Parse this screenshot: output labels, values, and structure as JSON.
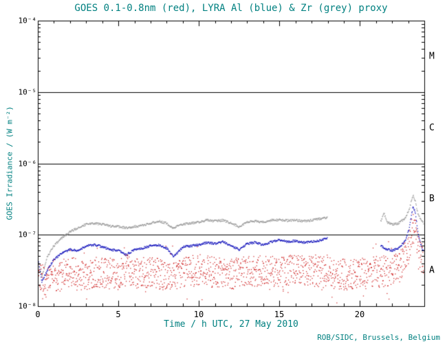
{
  "title": "GOES 0.1-0.8nm (red), LYRA Al (blue) & Zr (grey) proxy",
  "credit": "ROB/SIDC, Brussels, Belgium",
  "colors": {
    "title_text": "#008080",
    "axis": "#000000",
    "red": "#cc1111",
    "blue": "#1111bb",
    "grey": "#999999",
    "background": "#ffffff"
  },
  "axes": {
    "x": {
      "label": "Time / h UTC, 27 May 2010",
      "min": 0,
      "max": 24,
      "minor_step": 1,
      "ticks": [
        {
          "value": 0,
          "label": "0"
        },
        {
          "value": 5,
          "label": "5"
        },
        {
          "value": 10,
          "label": "10"
        },
        {
          "value": 15,
          "label": "15"
        },
        {
          "value": 20,
          "label": "20"
        }
      ]
    },
    "y": {
      "label": "GOES Irradiance / (W m⁻²)",
      "min_exp": -8,
      "max_exp": -4,
      "ticks": [
        {
          "exp": -4,
          "label": "10⁻⁴"
        },
        {
          "exp": -5,
          "label": "10⁻⁵"
        },
        {
          "exp": -6,
          "label": "10⁻⁶"
        },
        {
          "exp": -7,
          "label": "10⁻⁷"
        },
        {
          "exp": -8,
          "label": "10⁻⁸"
        }
      ]
    }
  },
  "flux_classes": [
    {
      "label": "M",
      "band_mid_exp": -4.5
    },
    {
      "label": "C",
      "band_mid_exp": -5.5
    },
    {
      "label": "B",
      "band_mid_exp": -6.5
    },
    {
      "label": "A",
      "band_mid_exp": -7.5
    }
  ],
  "threshold_lines": [
    1e-05,
    1e-06,
    1e-07
  ],
  "chart_data": {
    "type": "scatter",
    "title": "GOES 0.1-0.8nm (red), LYRA Al (blue) & Zr (grey) proxy",
    "xlabel": "Time / h UTC, 27 May 2010",
    "ylabel": "GOES Irradiance / (W m⁻²)",
    "x_range_hours": [
      0,
      24
    ],
    "y_range": [
      1e-08,
      0.0001
    ],
    "y_scale": "log",
    "grid": false,
    "legend": "in title",
    "series": [
      {
        "name": "LYRA Zr proxy",
        "color_key": "grey",
        "style": "dotted-line",
        "seed": 303,
        "sample_step": 0.025,
        "jitter_log": 0.015,
        "dot": 1.3,
        "segments": [
          [
            [
              0,
              4.5e-08
            ],
            [
              0.25,
              2.6e-08
            ],
            [
              0.6,
              5e-08
            ],
            [
              1,
              7e-08
            ],
            [
              1.5,
              9e-08
            ],
            [
              2,
              1.1e-07
            ],
            [
              2.5,
              1.25e-07
            ],
            [
              3,
              1.4e-07
            ],
            [
              3.5,
              1.45e-07
            ],
            [
              4,
              1.4e-07
            ],
            [
              4.5,
              1.32e-07
            ],
            [
              5,
              1.3e-07
            ],
            [
              5.5,
              1.25e-07
            ],
            [
              6,
              1.3e-07
            ],
            [
              6.5,
              1.35e-07
            ],
            [
              7,
              1.45e-07
            ],
            [
              7.5,
              1.55e-07
            ],
            [
              8,
              1.45e-07
            ],
            [
              8.4,
              1.25e-07
            ],
            [
              9,
              1.4e-07
            ],
            [
              9.5,
              1.45e-07
            ],
            [
              10,
              1.5e-07
            ],
            [
              10.5,
              1.6e-07
            ],
            [
              11,
              1.55e-07
            ],
            [
              11.5,
              1.6e-07
            ],
            [
              12,
              1.45e-07
            ],
            [
              12.5,
              1.3e-07
            ],
            [
              13,
              1.5e-07
            ],
            [
              13.5,
              1.55e-07
            ],
            [
              14,
              1.5e-07
            ],
            [
              14.5,
              1.6e-07
            ],
            [
              15,
              1.62e-07
            ],
            [
              15.5,
              1.58e-07
            ],
            [
              16,
              1.6e-07
            ],
            [
              16.5,
              1.55e-07
            ],
            [
              17,
              1.6e-07
            ],
            [
              17.5,
              1.68e-07
            ],
            [
              18,
              1.75e-07
            ]
          ],
          [
            [
              21.3,
              1.55e-07
            ],
            [
              21.5,
              2e-07
            ],
            [
              21.7,
              1.5e-07
            ],
            [
              22,
              1.4e-07
            ],
            [
              22.4,
              1.45e-07
            ],
            [
              22.8,
              1.7e-07
            ],
            [
              23.05,
              2.2e-07
            ],
            [
              23.3,
              3.6e-07
            ],
            [
              23.45,
              2.9e-07
            ],
            [
              23.6,
              2e-07
            ],
            [
              23.8,
              1.6e-07
            ],
            [
              24,
              1.4e-07
            ]
          ]
        ]
      },
      {
        "name": "LYRA Al proxy",
        "color_key": "blue",
        "style": "dotted-line",
        "seed": 202,
        "sample_step": 0.025,
        "jitter_log": 0.015,
        "dot": 1.3,
        "segments": [
          [
            [
              0,
              5e-08
            ],
            [
              0.25,
              2.2e-08
            ],
            [
              0.6,
              3.2e-08
            ],
            [
              1,
              4.5e-08
            ],
            [
              1.5,
              5.5e-08
            ],
            [
              2,
              6.2e-08
            ],
            [
              2.5,
              6e-08
            ],
            [
              3,
              7e-08
            ],
            [
              3.5,
              7.2e-08
            ],
            [
              4,
              6.8e-08
            ],
            [
              4.5,
              6.2e-08
            ],
            [
              5,
              6e-08
            ],
            [
              5.5,
              5.2e-08
            ],
            [
              6,
              6.2e-08
            ],
            [
              6.5,
              6.5e-08
            ],
            [
              7,
              7e-08
            ],
            [
              7.5,
              7.2e-08
            ],
            [
              8,
              6.5e-08
            ],
            [
              8.4,
              5e-08
            ],
            [
              8.7,
              5.6e-08
            ],
            [
              9,
              6.8e-08
            ],
            [
              9.5,
              7e-08
            ],
            [
              10,
              7.2e-08
            ],
            [
              10.5,
              7.8e-08
            ],
            [
              11,
              7.5e-08
            ],
            [
              11.5,
              8e-08
            ],
            [
              12,
              7e-08
            ],
            [
              12.5,
              6.2e-08
            ],
            [
              13,
              7.5e-08
            ],
            [
              13.5,
              7.8e-08
            ],
            [
              14,
              7.2e-08
            ],
            [
              14.5,
              8e-08
            ],
            [
              15,
              8.5e-08
            ],
            [
              15.5,
              8e-08
            ],
            [
              16,
              8.2e-08
            ],
            [
              16.5,
              7.8e-08
            ],
            [
              17,
              8e-08
            ],
            [
              17.5,
              8.3e-08
            ],
            [
              18,
              9e-08
            ]
          ],
          [
            [
              21.3,
              7e-08
            ],
            [
              21.6,
              6.3e-08
            ],
            [
              22,
              6e-08
            ],
            [
              22.4,
              6.5e-08
            ],
            [
              22.8,
              8e-08
            ],
            [
              23.05,
              1.2e-07
            ],
            [
              23.3,
              2.5e-07
            ],
            [
              23.45,
              2e-07
            ],
            [
              23.6,
              1.1e-07
            ],
            [
              23.8,
              7e-08
            ],
            [
              24,
              5.5e-08
            ]
          ]
        ]
      },
      {
        "name": "GOES 0.1-0.8nm",
        "color_key": "red",
        "style": "scatter",
        "seed": 101,
        "sample_step": 0.03,
        "spread_log": 0.22,
        "dot": 1.2,
        "segments": [
          [
            [
              0,
              4e-08
            ],
            [
              0.2,
              2.6e-08
            ],
            [
              0.5,
              2e-08
            ],
            [
              0.8,
              3e-08
            ],
            [
              1.2,
              2.6e-08
            ],
            [
              2,
              3e-08
            ],
            [
              3,
              2.8e-08
            ],
            [
              4,
              3e-08
            ],
            [
              5,
              2.7e-08
            ],
            [
              5.5,
              3.2e-08
            ],
            [
              6,
              2.8e-08
            ],
            [
              7,
              3e-08
            ],
            [
              8,
              2.7e-08
            ],
            [
              9,
              3e-08
            ],
            [
              10,
              3.2e-08
            ],
            [
              11,
              3e-08
            ],
            [
              12,
              2.8e-08
            ],
            [
              13,
              3e-08
            ],
            [
              14,
              3.2e-08
            ],
            [
              15,
              3e-08
            ],
            [
              16,
              3.2e-08
            ],
            [
              17,
              3e-08
            ],
            [
              18,
              3e-08
            ],
            [
              19,
              2.8e-08
            ],
            [
              20,
              2.8e-08
            ],
            [
              21,
              3e-08
            ],
            [
              22,
              3.2e-08
            ],
            [
              22.5,
              3.6e-08
            ],
            [
              23,
              6e-08
            ],
            [
              23.3,
              1.2e-07
            ],
            [
              23.45,
              1.05e-07
            ],
            [
              23.7,
              6e-08
            ],
            [
              24,
              3.5e-08
            ]
          ]
        ]
      }
    ]
  }
}
